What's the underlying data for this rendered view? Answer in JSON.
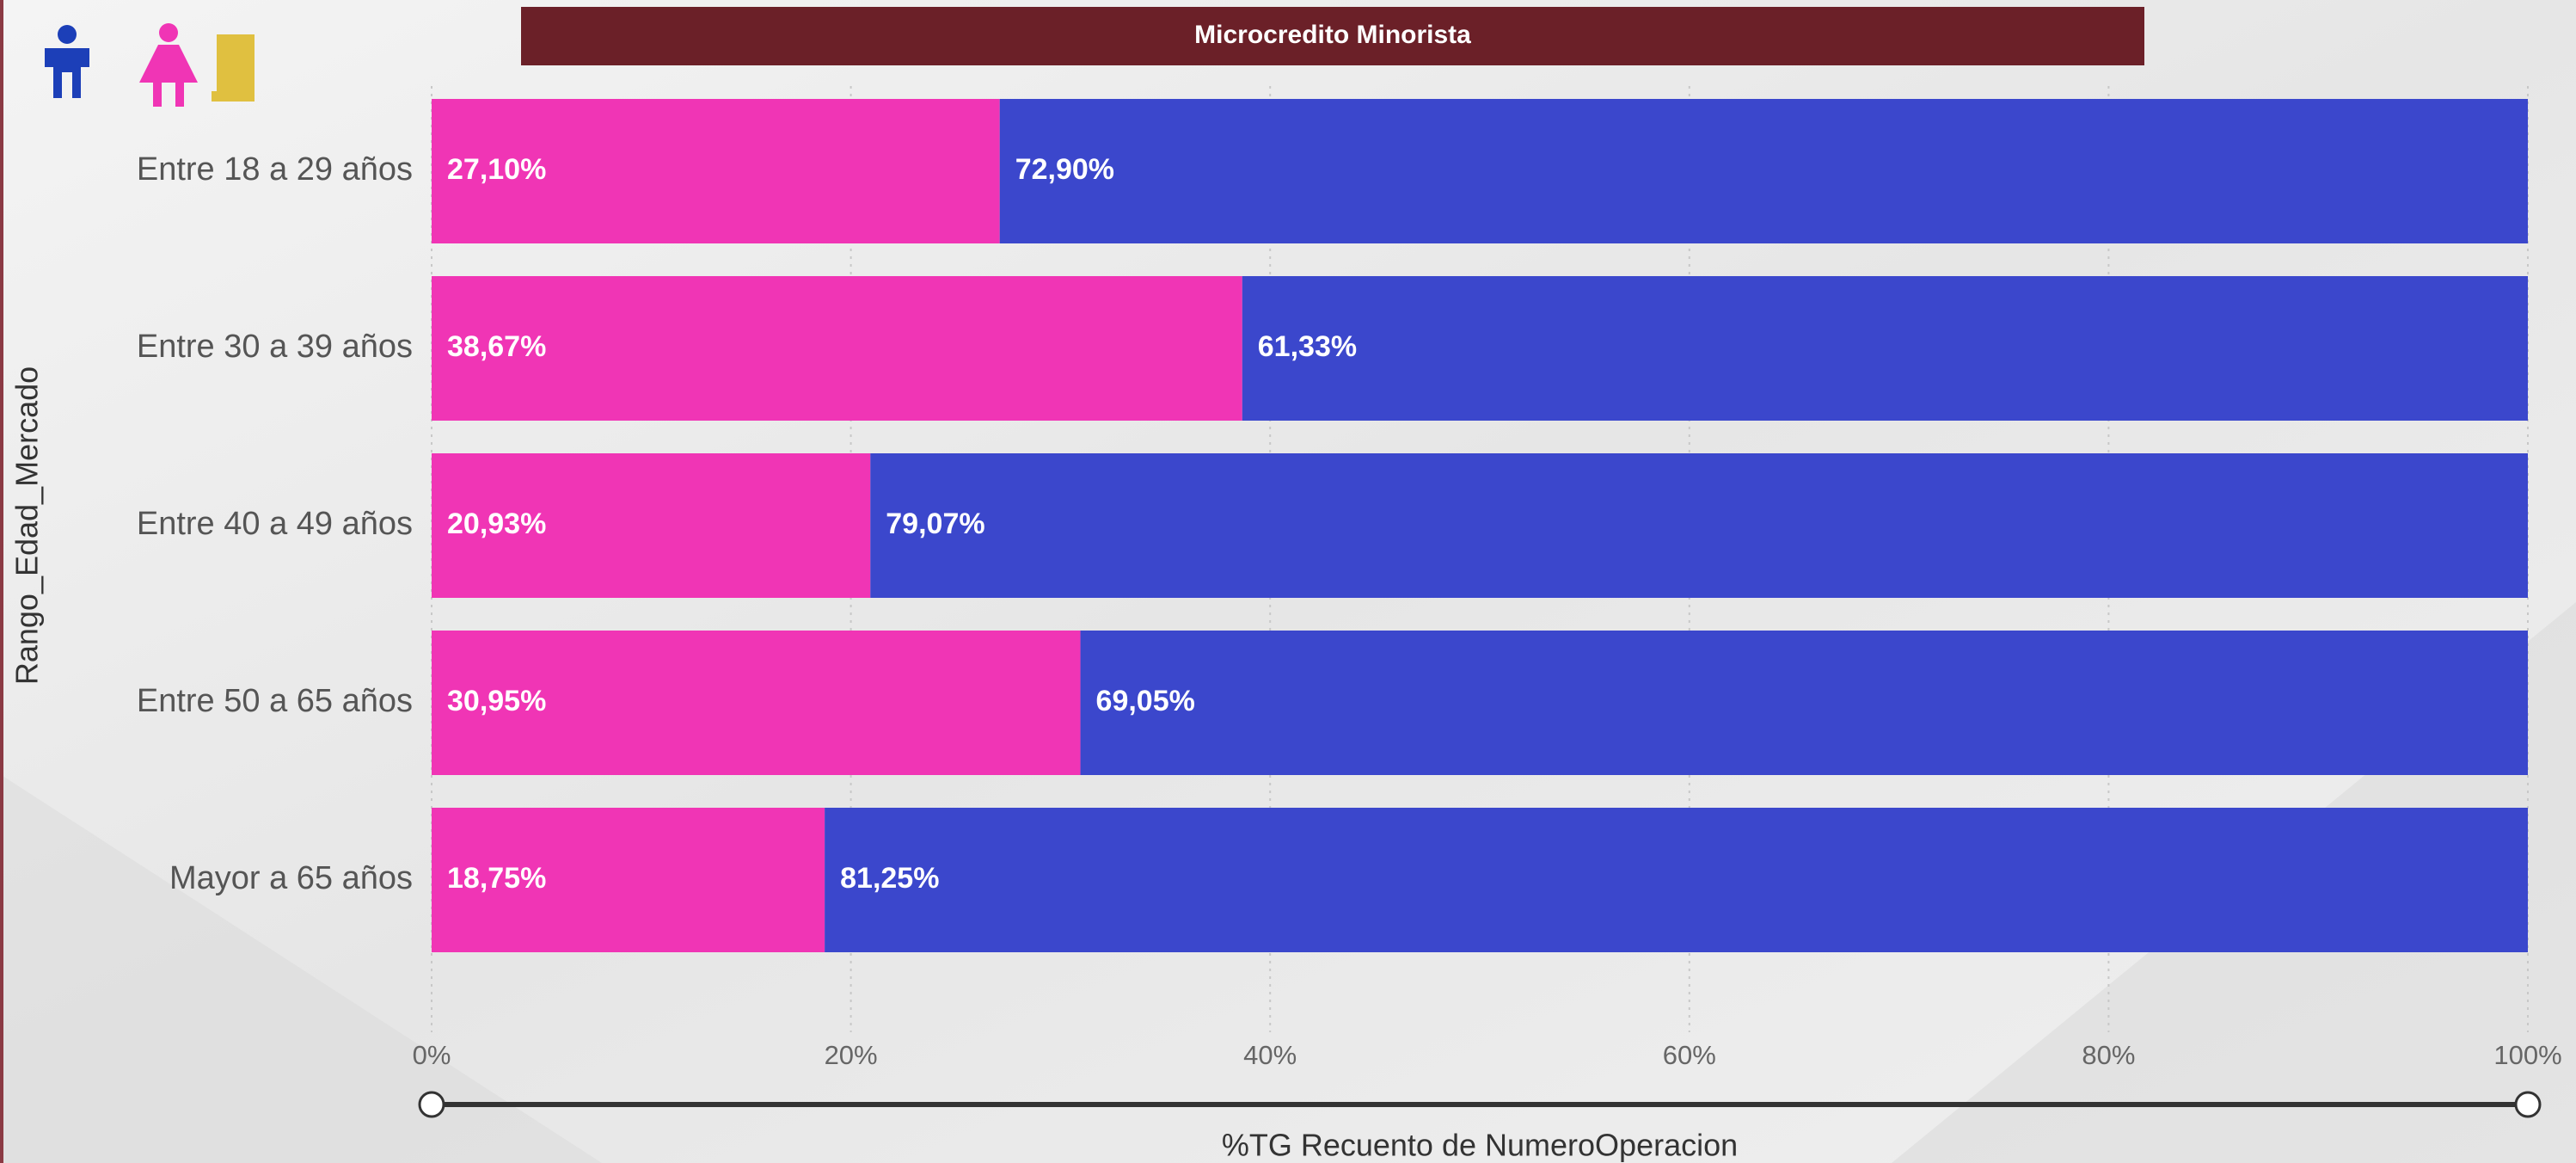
{
  "chart_data": {
    "type": "stacked_barh",
    "title": "Microcredito Minorista",
    "ylabel": "Rango_Edad_Mercado",
    "xlabel": "%TG Recuento de NumeroOperacion",
    "categories": [
      "Entre 18 a 29 años",
      "Entre 30 a 39 años",
      "Entre 40 a 49 años",
      "Entre 50 a 65 años",
      "Mayor a 65 años"
    ],
    "series": [
      {
        "color": "#f035b5",
        "values": [
          27.1,
          38.67,
          20.93,
          30.95,
          18.75
        ],
        "value_labels": [
          "27,10%",
          "38,67%",
          "20,93%",
          "30,95%",
          "18,75%"
        ]
      },
      {
        "color": "#3b47cc",
        "values": [
          72.9,
          61.33,
          79.07,
          69.05,
          81.25
        ],
        "value_labels": [
          "72,90%",
          "61,33%",
          "79,07%",
          "69,05%",
          "81,25%"
        ]
      }
    ],
    "xlim": [
      0,
      100
    ],
    "xticks": [
      {
        "value": 0,
        "label": "0%"
      },
      {
        "value": 20,
        "label": "20%"
      },
      {
        "value": 40,
        "label": "40%"
      },
      {
        "value": 60,
        "label": "60%"
      },
      {
        "value": 80,
        "label": "80%"
      },
      {
        "value": 100,
        "label": "100%"
      }
    ],
    "grid": true
  }
}
